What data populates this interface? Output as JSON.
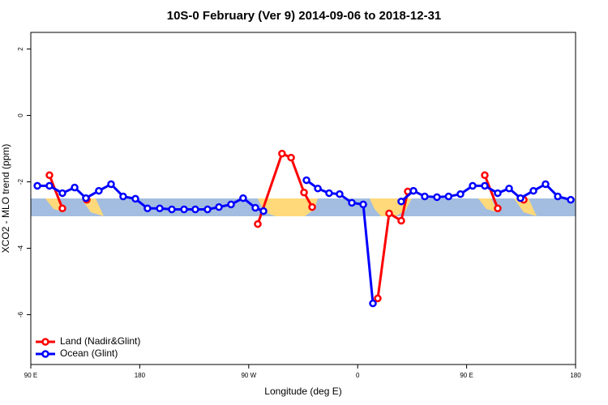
{
  "chart_data": {
    "type": "line",
    "title": "10S-0 February (Ver 9)   2014-09-06 to 2018-12-31",
    "xlabel": "Longitude (deg E)",
    "ylabel": "XCO2 - MLO trend (ppm)",
    "xlim": [
      90,
      540
    ],
    "xticks": [
      {
        "value": 90,
        "label": "90 E"
      },
      {
        "value": 180,
        "label": "180"
      },
      {
        "value": 270,
        "label": "90 W"
      },
      {
        "value": 360,
        "label": "0"
      },
      {
        "value": 450,
        "label": "90 E"
      },
      {
        "value": 540,
        "label": "180"
      }
    ],
    "ylim": [
      -7.5,
      2.5
    ],
    "yticks": [
      2,
      0,
      -2,
      -4,
      -6
    ],
    "legend": "bottom-left",
    "series": [
      {
        "name": "Land (Nadir&Glint)",
        "color": "#ff0000",
        "x": [
          105.4,
          116.1,
          null,
          136.2,
          null,
          277.5,
          297.5,
          305.0,
          315.7,
          322.4,
          null,
          376.6,
          386.0,
          396.0,
          401.4,
          null,
          465.0,
          475.7,
          null,
          497.2
        ],
        "values": [
          -1.8,
          -2.8,
          null,
          -2.54,
          null,
          -3.27,
          -1.15,
          -1.27,
          -2.32,
          -2.76,
          null,
          -5.51,
          -2.95,
          -3.17,
          -2.29,
          null,
          -1.8,
          -2.8,
          null,
          -2.54
        ]
      },
      {
        "name": "Ocean (Glint)",
        "color": "#0000ff",
        "x": [
          95.4,
          105.4,
          116.1,
          126.2,
          135.5,
          146.2,
          156.3,
          166.3,
          176.4,
          186.4,
          196.5,
          206.5,
          216.6,
          225.9,
          236.0,
          245.4,
          255.4,
          265.4,
          275.5,
          282.2,
          null,
          317.7,
          327.1,
          336.4,
          345.1,
          355.2,
          364.6,
          372.6,
          null,
          396.0,
          406.1,
          415.4,
          425.5,
          435.1,
          444.9,
          455.0,
          465.0,
          475.7,
          485.1,
          494.5,
          505.2,
          515.2,
          525.3,
          536.0
        ],
        "values": [
          -2.12,
          -2.12,
          -2.34,
          -2.17,
          -2.49,
          -2.27,
          -2.07,
          -2.44,
          -2.51,
          -2.8,
          -2.8,
          -2.83,
          -2.83,
          -2.83,
          -2.83,
          -2.76,
          -2.68,
          -2.49,
          -2.78,
          -2.88,
          null,
          -1.95,
          -2.2,
          -2.34,
          -2.37,
          -2.63,
          -2.68,
          -5.66,
          null,
          -2.59,
          -2.27,
          -2.44,
          -2.46,
          -2.44,
          -2.37,
          -2.12,
          -2.12,
          -2.34,
          -2.2,
          -2.49,
          -2.27,
          -2.07,
          -2.44,
          -2.54
        ]
      }
    ]
  }
}
